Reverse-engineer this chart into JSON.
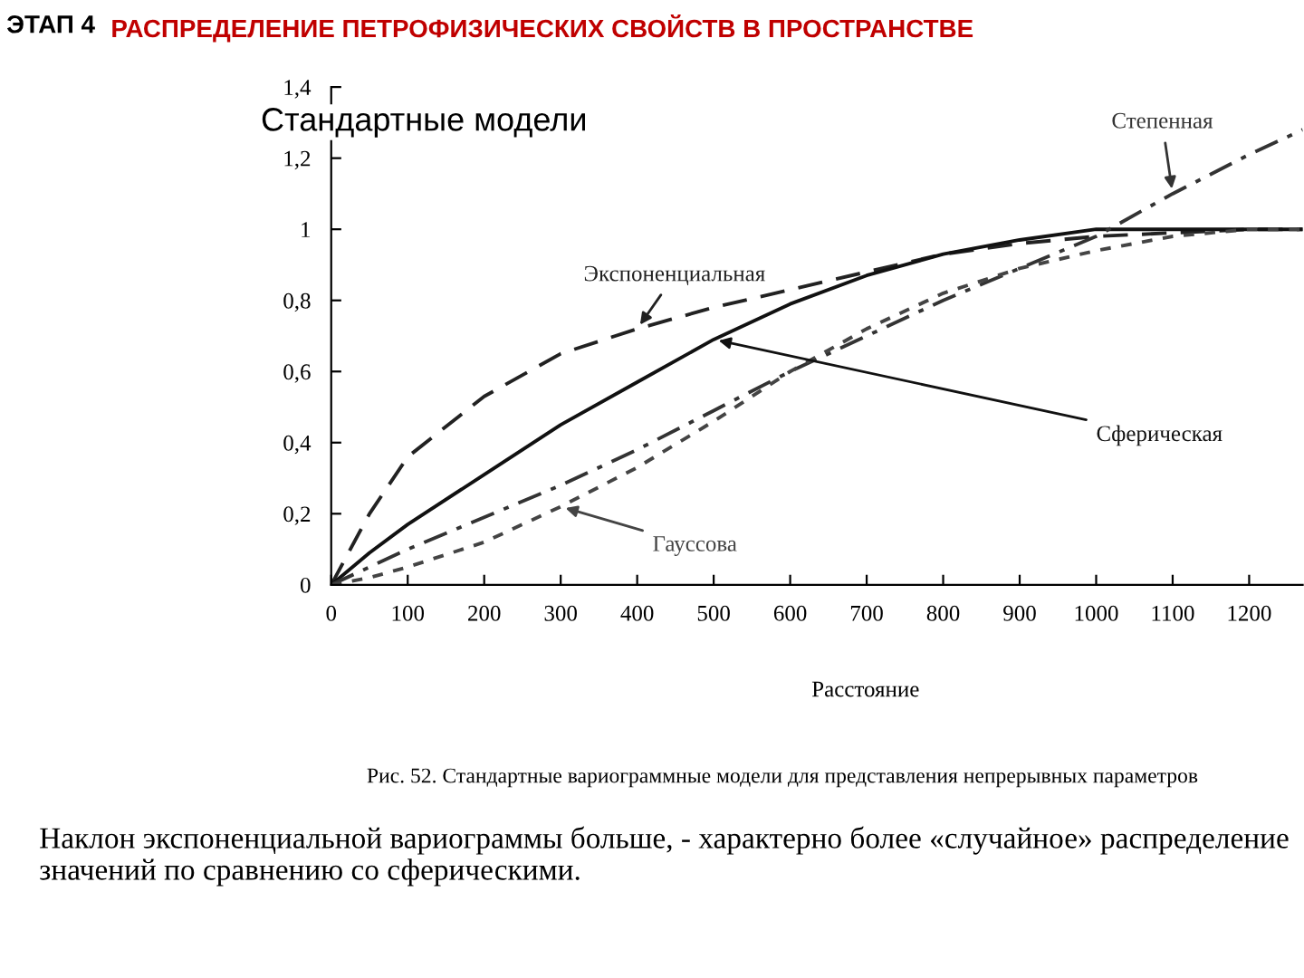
{
  "chart_data": {
    "type": "line",
    "title": "ЭТАП 4",
    "subtitle": "РАСПРЕДЕЛЕНИЕ ПЕТРОФИЗИЧЕСКИХ СВОЙСТВ В ПРОСТРАНСТВЕ",
    "xlabel": "Расстояние",
    "x": [
      0,
      50,
      100,
      200,
      300,
      400,
      500,
      600,
      700,
      800,
      900,
      1000,
      1100,
      1200,
      1270
    ],
    "series": [
      {
        "name": "Экспоненциальная",
        "color": "#222222",
        "line_style": "dashed",
        "values": [
          0,
          0.2,
          0.36,
          0.53,
          0.65,
          0.72,
          0.78,
          0.83,
          0.88,
          0.93,
          0.96,
          0.98,
          0.99,
          1.0,
          1.0
        ]
      },
      {
        "name": "Сферическая",
        "color": "#111111",
        "line_style": "solid",
        "values": [
          0,
          0.09,
          0.17,
          0.31,
          0.45,
          0.57,
          0.69,
          0.79,
          0.87,
          0.93,
          0.97,
          1.0,
          1.0,
          1.0,
          1.0
        ]
      },
      {
        "name": "Степенная",
        "color": "#333333",
        "line_style": "dashdot",
        "values": [
          0,
          0.05,
          0.1,
          0.19,
          0.28,
          0.38,
          0.49,
          0.6,
          0.7,
          0.8,
          0.89,
          0.98,
          1.1,
          1.21,
          1.28
        ]
      },
      {
        "name": "Гауссова",
        "color": "#444444",
        "line_style": "dotted",
        "values": [
          0,
          0.02,
          0.05,
          0.12,
          0.22,
          0.33,
          0.46,
          0.6,
          0.72,
          0.82,
          0.89,
          0.94,
          0.98,
          1.0,
          1.0
        ]
      }
    ],
    "xlim": [
      0,
      1270
    ],
    "xticks": [
      0,
      100,
      200,
      300,
      400,
      500,
      600,
      700,
      800,
      900,
      1000,
      1100,
      1200
    ],
    "ylim": [
      0,
      1.4
    ],
    "yticks": [
      0,
      {
        "value": 0.2,
        "label": "0,2"
      },
      {
        "value": 0.4,
        "label": "0,4"
      },
      {
        "value": 0.6,
        "label": "0,6"
      },
      {
        "value": 0.8,
        "label": "0,8"
      },
      1,
      {
        "value": 1.2,
        "label": "1,2"
      },
      {
        "value": 1.4,
        "label": "1,4"
      }
    ],
    "grid": false,
    "legend": false,
    "annotations": [
      "Стандартные модели",
      "Рис. 52. Стандартные вариограммные модели для представления непрерывных параметров",
      "Наклон экспоненциальной вариограммы больше, - характерно более «случайное» распределение значений по сравнению со сферическими."
    ]
  }
}
